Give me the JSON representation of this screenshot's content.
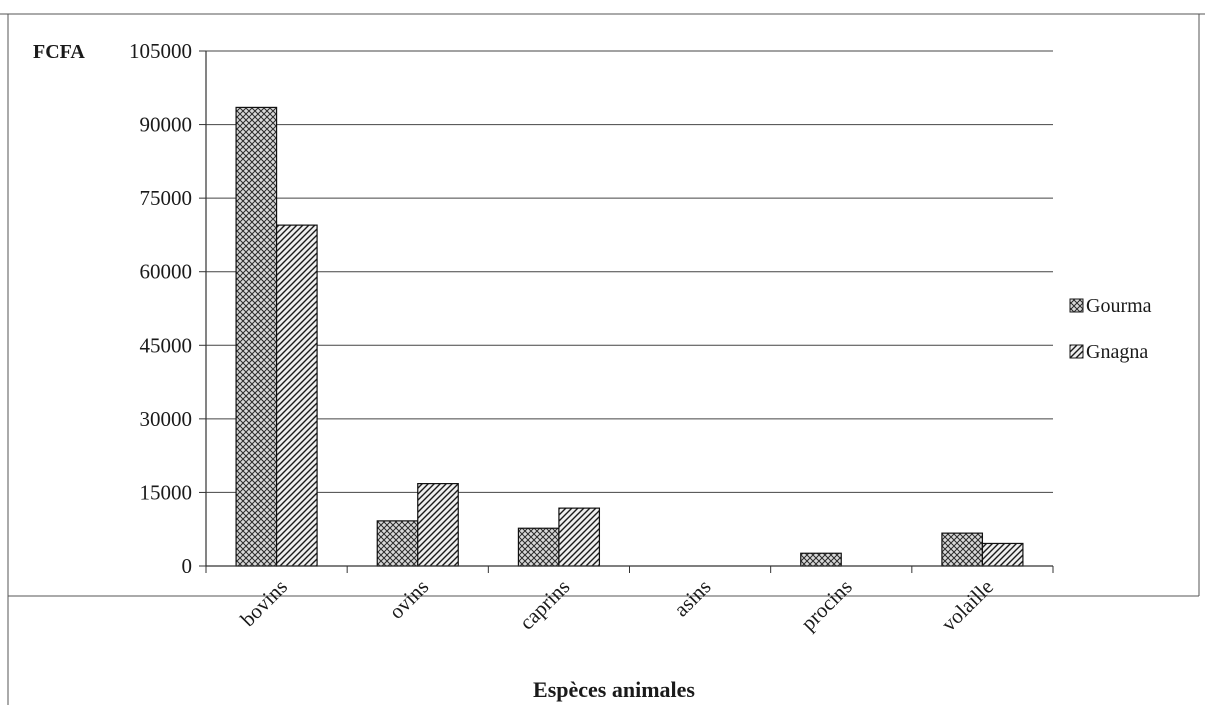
{
  "chart_data": {
    "type": "bar",
    "ylabel": "FCFA",
    "xlabel": "Espèces animales",
    "ylim": [
      0,
      105000
    ],
    "yticks": [
      0,
      15000,
      30000,
      45000,
      60000,
      75000,
      90000,
      105000
    ],
    "ytick_labels": [
      "0",
      "15000",
      "30000",
      "45000",
      "60000",
      "75000",
      "90000",
      "105000"
    ],
    "categories": [
      "bovins",
      "ovins",
      "caprins",
      "asins",
      "procins",
      "volaille"
    ],
    "series": [
      {
        "name": "Gourma",
        "values": [
          93500,
          9200,
          7700,
          0,
          2600,
          6700
        ],
        "pattern": "crosshatch"
      },
      {
        "name": "Gnagna",
        "values": [
          69500,
          16800,
          11800,
          0,
          0,
          4600
        ],
        "pattern": "diagonal"
      }
    ],
    "grid": true,
    "legend_position": "right"
  }
}
